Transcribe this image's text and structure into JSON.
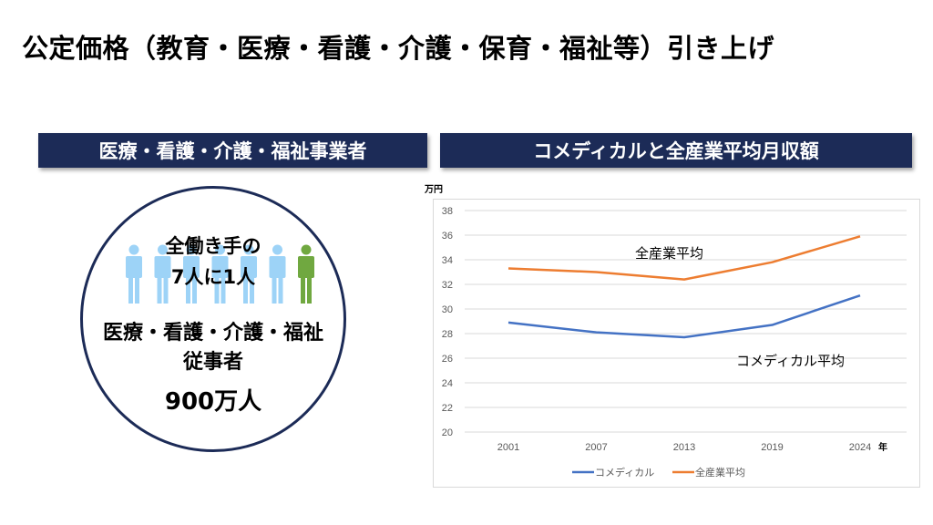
{
  "title": "公定価格（教育・医療・看護・介護・保育・福祉等）引き上げ",
  "left_header": "医療・看護・介護・福祉事業者",
  "right_header": "コメディカルと全産業平均月収額",
  "circle": {
    "line1": "全働き手の",
    "line2": "7人に1人",
    "line3": "医療・看護・介護・福祉",
    "line4": "従事者",
    "line5": "900万人",
    "people_colors": [
      "#9dd3f7",
      "#9dd3f7",
      "#9dd3f7",
      "#9dd3f7",
      "#9dd3f7",
      "#9dd3f7",
      "#70a840"
    ]
  },
  "chart_data": {
    "type": "line",
    "ylabel": "万円",
    "xlabel": "年",
    "categories": [
      "2001",
      "2007",
      "2013",
      "2019",
      "2024"
    ],
    "ylim": [
      20,
      38
    ],
    "yticks": [
      20,
      22,
      24,
      26,
      28,
      30,
      32,
      34,
      36,
      38
    ],
    "grid": true,
    "legend_position": "bottom",
    "series": [
      {
        "name": "コメディカル",
        "annotation": "コメディカル平均",
        "color": "#4472c4",
        "values": [
          28.9,
          28.1,
          27.7,
          28.7,
          31.1
        ]
      },
      {
        "name": "全産業平均",
        "annotation": "全産業平均",
        "color": "#ed7d31",
        "values": [
          33.3,
          33.0,
          32.4,
          33.8,
          35.9
        ]
      }
    ]
  }
}
